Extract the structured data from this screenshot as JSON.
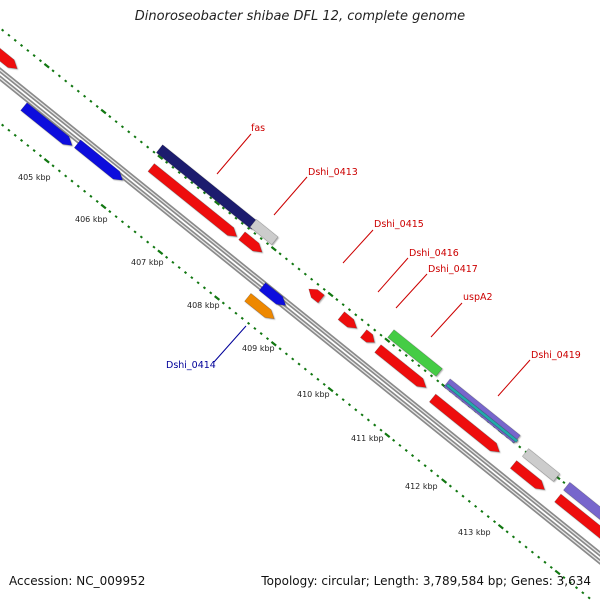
{
  "title": "Dinoroseobacter shibae DFL 12, complete genome",
  "footer": {
    "accession": "Accession: NC_009952",
    "summary": "Topology: circular; Length: 3,789,584 bp; Genes: 3,634"
  },
  "kbp_labels": [
    "405 kbp",
    "406 kbp",
    "407 kbp",
    "408 kbp",
    "409 kbp",
    "410 kbp",
    "411 kbp",
    "412 kbp",
    "413 kbp"
  ],
  "gene_labels": [
    {
      "text": "fas",
      "color": "#cc0000"
    },
    {
      "text": "Dshi_0413",
      "color": "#cc0000"
    },
    {
      "text": "Dshi_0415",
      "color": "#cc0000"
    },
    {
      "text": "Dshi_0416",
      "color": "#cc0000"
    },
    {
      "text": "Dshi_0417",
      "color": "#cc0000"
    },
    {
      "text": "uspA2",
      "color": "#cc0000"
    },
    {
      "text": "Dshi_0419",
      "color": "#cc0000"
    },
    {
      "text": "Dshi_0414",
      "color": "#000099"
    }
  ],
  "colors": {
    "cds": "#ee1111",
    "forward_dark": "#1a1a6e",
    "blue": "#1111dd",
    "gray": "#cccccc",
    "green": "#44cc44",
    "orange": "#ee8800",
    "teal": "#22aaaa",
    "lavender": "#7766cc",
    "backbone": "#888888",
    "tick": "#117711"
  }
}
